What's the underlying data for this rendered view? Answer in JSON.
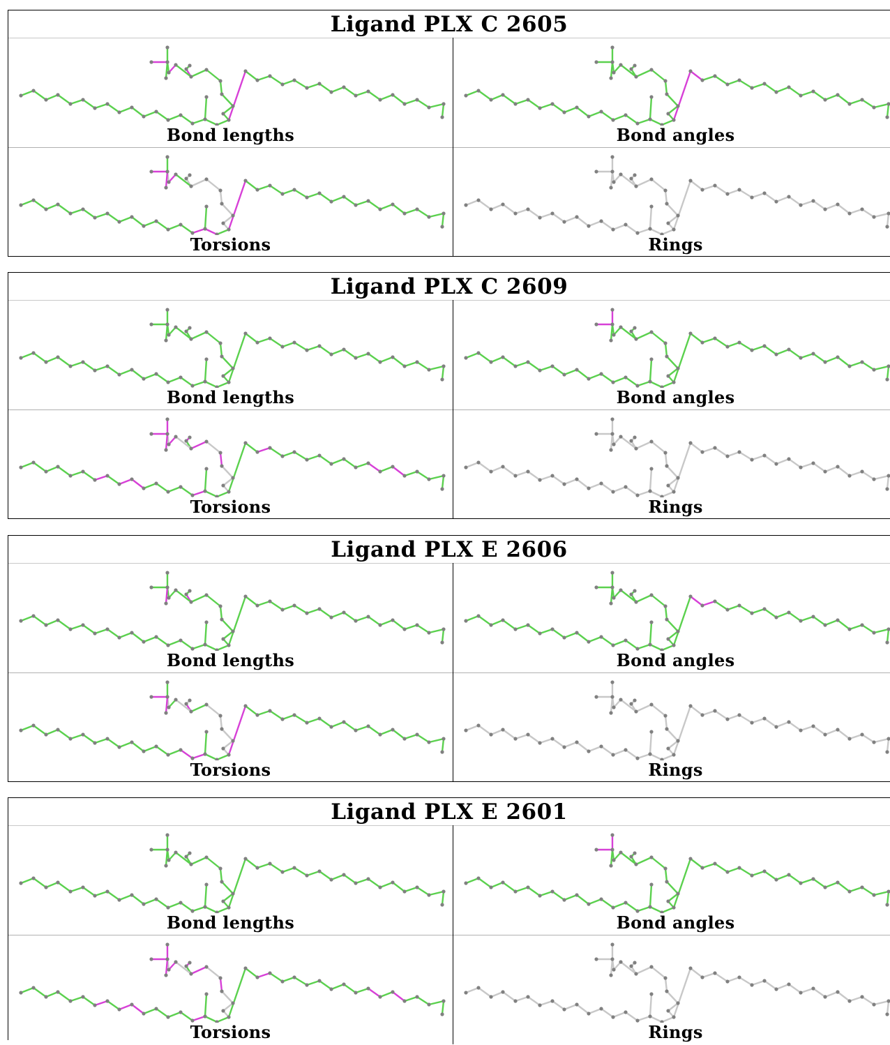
{
  "colors": {
    "ok_bond": "#5bd14e",
    "outlier_bond": "#d740d7",
    "neutral_bond": "#c8c8c8",
    "atom": "#808080"
  },
  "panels": [
    {
      "title": "Ligand PLX C 2605",
      "cells": [
        {
          "label": "Bond lengths",
          "mode": "green",
          "highlights": [
            24,
            27,
            29,
            32
          ]
        },
        {
          "label": "Bond angles",
          "mode": "green",
          "highlights": [
            32,
            33
          ]
        },
        {
          "label": "Torsions",
          "mode": "green",
          "gray": [
            18,
            19,
            20,
            21,
            22,
            23,
            24,
            25,
            28
          ],
          "highlights": [
            14,
            15,
            27,
            29,
            31,
            32
          ]
        },
        {
          "label": "Rings",
          "mode": "gray",
          "highlights": []
        }
      ]
    },
    {
      "title": "Ligand PLX C 2609",
      "cells": [
        {
          "label": "Bond lengths",
          "mode": "green",
          "highlights": []
        },
        {
          "label": "Bond angles",
          "mode": "green",
          "highlights": [
            29,
            30
          ]
        },
        {
          "label": "Torsions",
          "mode": "green",
          "gray": [
            18,
            19,
            20,
            21,
            22,
            25,
            26,
            28
          ],
          "highlights": [
            6,
            8,
            9,
            14,
            21,
            23,
            25,
            27,
            29,
            30,
            31,
            34,
            43,
            45
          ]
        },
        {
          "label": "Rings",
          "mode": "gray",
          "highlights": []
        }
      ]
    },
    {
      "title": "Ligand PLX E 2606",
      "cells": [
        {
          "label": "Bond lengths",
          "mode": "green",
          "highlights": [
            24,
            31
          ]
        },
        {
          "label": "Bond angles",
          "mode": "green",
          "highlights": [
            33,
            34
          ]
        },
        {
          "label": "Torsions",
          "mode": "green",
          "gray": [
            18,
            19,
            20,
            21,
            22,
            25,
            26,
            28
          ],
          "highlights": [
            13,
            14,
            24,
            29,
            31,
            32
          ]
        },
        {
          "label": "Rings",
          "mode": "gray",
          "highlights": []
        }
      ]
    },
    {
      "title": "Ligand PLX E 2601",
      "cells": [
        {
          "label": "Bond lengths",
          "mode": "green",
          "highlights": []
        },
        {
          "label": "Bond angles",
          "mode": "green",
          "highlights": [
            29,
            30
          ]
        },
        {
          "label": "Torsions",
          "mode": "green",
          "gray": [
            18,
            19,
            20,
            21,
            22,
            25,
            26,
            28
          ],
          "highlights": [
            6,
            8,
            9,
            14,
            21,
            23,
            25,
            27,
            29,
            30,
            31,
            34,
            43,
            45
          ]
        },
        {
          "label": "Rings",
          "mode": "gray",
          "highlights": []
        }
      ]
    }
  ]
}
